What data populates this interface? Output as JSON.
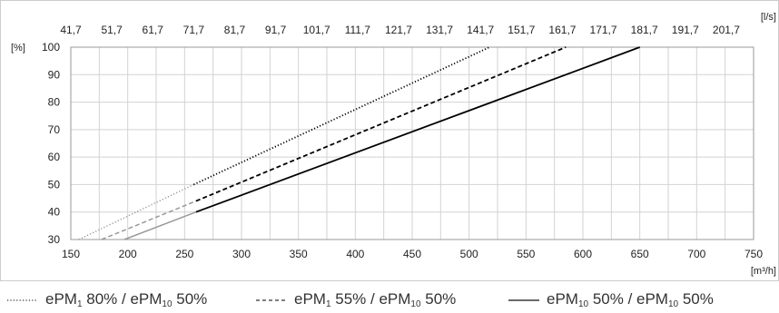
{
  "chart_data": {
    "type": "line",
    "x_bottom": {
      "unit": "[m³/h]",
      "range": [
        150,
        750
      ],
      "ticks": [
        150,
        200,
        250,
        300,
        350,
        400,
        450,
        500,
        550,
        600,
        650,
        700,
        750
      ]
    },
    "x_top": {
      "unit": "[l/s]",
      "ticks": [
        "41,7",
        "51,7",
        "61,7",
        "71,7",
        "81,7",
        "91,7",
        "101,7",
        "111,7",
        "121,7",
        "131,7",
        "141,7",
        "151,7",
        "161,7",
        "171,7",
        "181,7",
        "191,7",
        "201,7"
      ]
    },
    "y": {
      "unit": "[%]",
      "range": [
        30,
        100
      ],
      "ticks": [
        30,
        40,
        50,
        60,
        70,
        80,
        90,
        100
      ]
    },
    "grid": true,
    "legend_position": "bottom",
    "series": [
      {
        "name": "ePM1 80% / ePM10 50%",
        "style": "dotted",
        "color": "#000000",
        "extrapolated_color": "#999999",
        "extrapolated": [
          [
            157,
            30
          ],
          [
            258,
            50
          ]
        ],
        "measured": [
          [
            258,
            50
          ],
          [
            518,
            100
          ]
        ]
      },
      {
        "name": "ePM1 55% / ePM10 50%",
        "style": "dashed",
        "color": "#000000",
        "extrapolated_color": "#999999",
        "extrapolated": [
          [
            177,
            30
          ],
          [
            260,
            44
          ]
        ],
        "measured": [
          [
            260,
            44
          ],
          [
            585,
            100
          ]
        ]
      },
      {
        "name": "ePM10 50% / ePM10 50%",
        "style": "solid",
        "color": "#000000",
        "extrapolated_color": "#999999",
        "extrapolated": [
          [
            197,
            30
          ],
          [
            260,
            40
          ]
        ],
        "measured": [
          [
            260,
            40
          ],
          [
            650,
            100
          ]
        ]
      }
    ]
  },
  "legend": [
    {
      "sample": "dotted",
      "parts": [
        {
          "t": "ePM"
        },
        {
          "sub": "1"
        },
        {
          "t": " 80% / ePM"
        },
        {
          "sub": "10"
        },
        {
          "t": " 50%"
        }
      ]
    },
    {
      "sample": "dashed",
      "parts": [
        {
          "t": "ePM"
        },
        {
          "sub": "1"
        },
        {
          "t": " 55% / ePM"
        },
        {
          "sub": "10"
        },
        {
          "t": " 50%"
        }
      ]
    },
    {
      "sample": "solid",
      "parts": [
        {
          "t": "ePM"
        },
        {
          "sub": "10"
        },
        {
          "t": " 50% / ePM"
        },
        {
          "sub": "10"
        },
        {
          "t": " 50%"
        }
      ]
    }
  ]
}
